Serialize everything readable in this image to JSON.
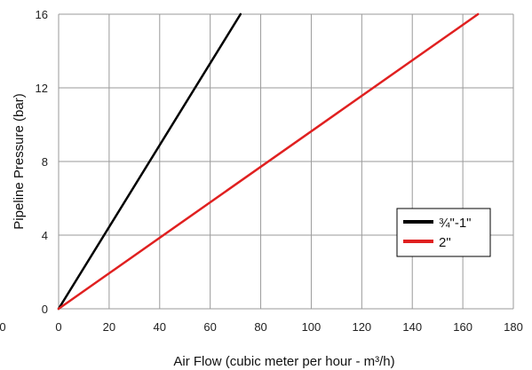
{
  "chart_data": {
    "type": "line",
    "title": "",
    "xlabel": "Air Flow (cubic meter per hour - m³/h)",
    "ylabel": "Pipeline Pressure (bar)",
    "xlim": [
      0,
      180
    ],
    "ylim": [
      0,
      16
    ],
    "xticks": [
      "0",
      "20",
      "40",
      "60",
      "80",
      "100",
      "120",
      "140",
      "160",
      "180"
    ],
    "yticks": [
      "0",
      "4",
      "8",
      "12",
      "16"
    ],
    "grid": true,
    "legend_position": "right-middle",
    "series": [
      {
        "name": "¾\"-1\"",
        "color": "#000000",
        "x": [
          0,
          72
        ],
        "y": [
          0,
          16
        ]
      },
      {
        "name": "2\"",
        "color": "#e02020",
        "x": [
          0,
          166
        ],
        "y": [
          0,
          16
        ]
      }
    ]
  }
}
